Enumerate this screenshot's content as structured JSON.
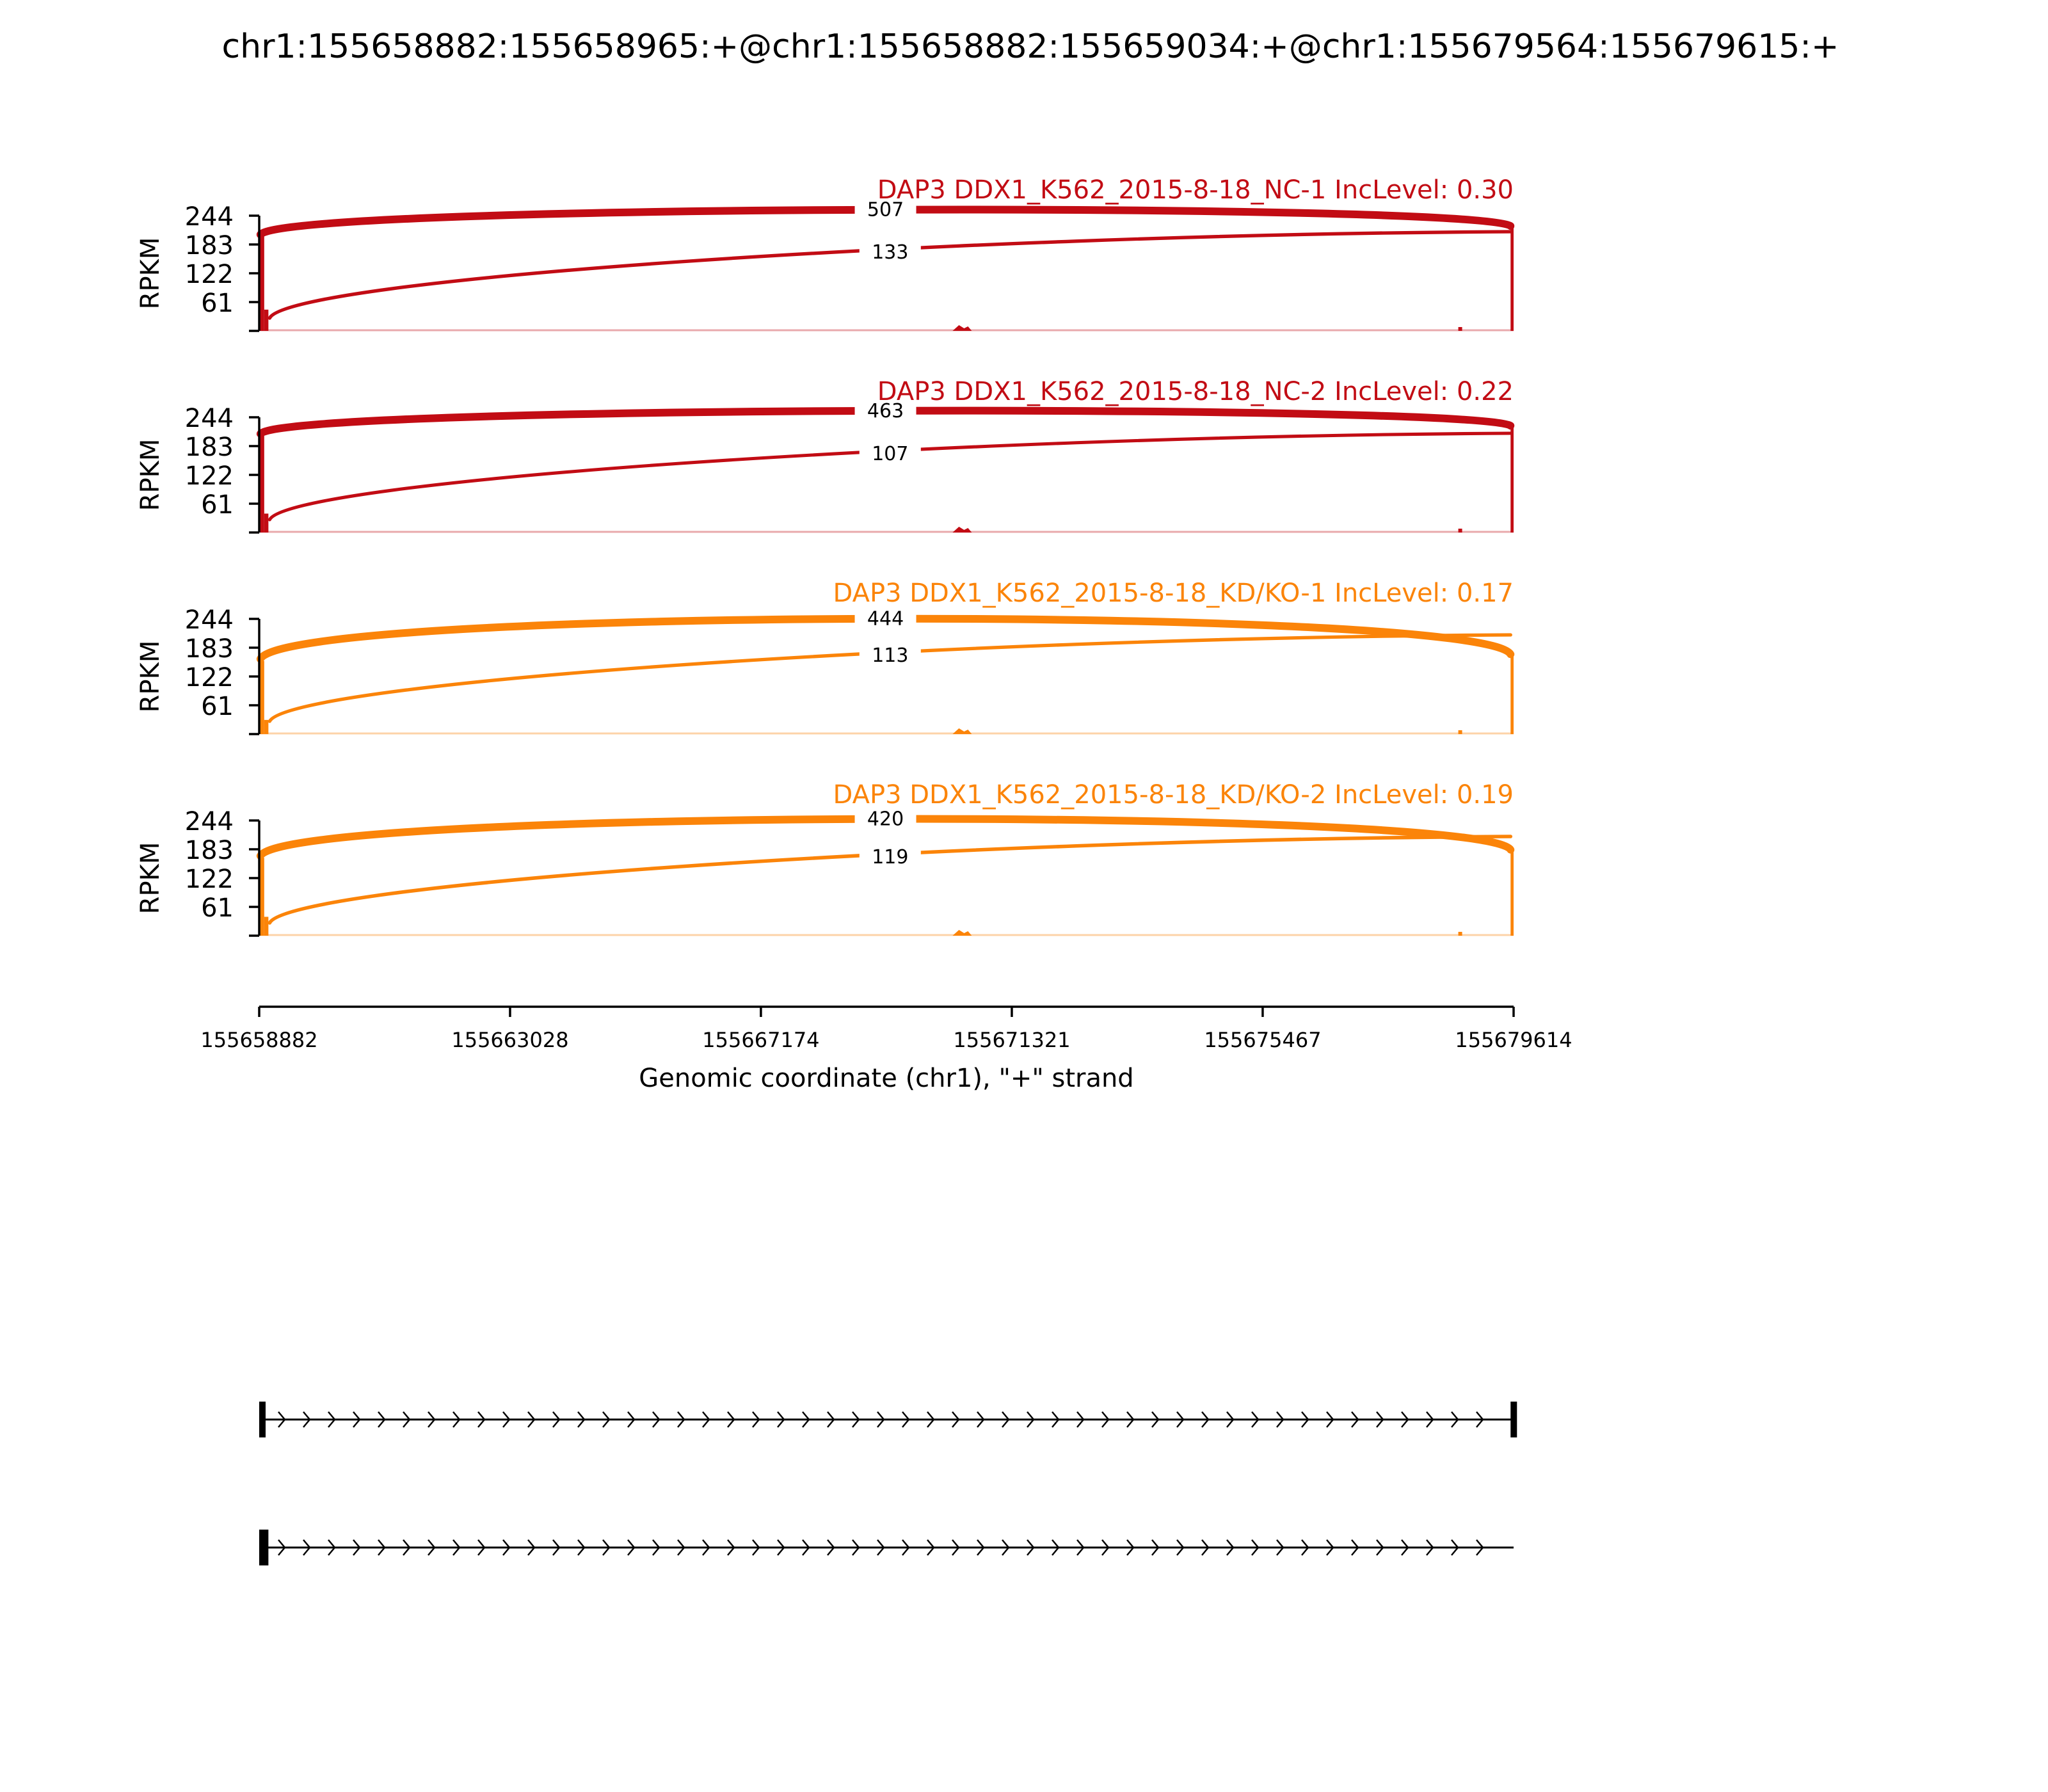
{
  "figure": {
    "title": "chr1:155658882:155658965:+@chr1:155658882:155659034:+@chr1:155679564:155679615:+"
  },
  "chart_data": {
    "type": "sashimi",
    "title": "chr1:155658882:155658965:+@chr1:155658882:155659034:+@chr1:155679564:155679615:+",
    "ylabel": "RPKM",
    "xlabel": "Genomic coordinate (chr1), \"+\" strand",
    "xlim": [
      155658882,
      155679614
    ],
    "ylim": [
      0,
      244
    ],
    "x_ticks": [
      155658882,
      155663028,
      155667174,
      155671321,
      155675467,
      155679614
    ],
    "y_ticks": [
      61,
      122,
      183,
      244
    ],
    "grid": false,
    "panels": [
      {
        "label": "DAP3 DDX1_K562_2015-8-18_NC-1 IncLevel: 0.30",
        "color": "#c20c14",
        "junctions": [
          {
            "start": 155658965,
            "end": 155679564,
            "count": 507,
            "shape": "above"
          },
          {
            "start": 155659034,
            "end": 155679564,
            "count": 133,
            "shape": "below"
          }
        ],
        "coverage": [
          {
            "start": 155658882,
            "end": 155658965,
            "value": 200
          },
          {
            "start": 155658965,
            "end": 155659034,
            "value": 45
          },
          {
            "start": 155679564,
            "end": 155679614,
            "value": 218
          }
        ]
      },
      {
        "label": "DAP3 DDX1_K562_2015-8-18_NC-2 IncLevel: 0.22",
        "color": "#c20c14",
        "junctions": [
          {
            "start": 155658965,
            "end": 155679564,
            "count": 463,
            "shape": "above"
          },
          {
            "start": 155659034,
            "end": 155679564,
            "count": 107,
            "shape": "below"
          }
        ],
        "coverage": [
          {
            "start": 155658882,
            "end": 155658965,
            "value": 205
          },
          {
            "start": 155658965,
            "end": 155659034,
            "value": 40
          },
          {
            "start": 155679564,
            "end": 155679614,
            "value": 222
          }
        ]
      },
      {
        "label": "DAP3 DDX1_K562_2015-8-18_KD/KO-1 IncLevel: 0.17",
        "color": "#fb8409",
        "junctions": [
          {
            "start": 155658965,
            "end": 155679564,
            "count": 444,
            "shape": "above"
          },
          {
            "start": 155659034,
            "end": 155679564,
            "count": 113,
            "shape": "below"
          }
        ],
        "coverage": [
          {
            "start": 155658882,
            "end": 155658965,
            "value": 155
          },
          {
            "start": 155658965,
            "end": 155659034,
            "value": 30
          },
          {
            "start": 155679564,
            "end": 155679614,
            "value": 165
          }
        ]
      },
      {
        "label": "DAP3 DDX1_K562_2015-8-18_KD/KO-2 IncLevel: 0.19",
        "color": "#fb8409",
        "junctions": [
          {
            "start": 155658965,
            "end": 155679564,
            "count": 420,
            "shape": "above"
          },
          {
            "start": 155659034,
            "end": 155679564,
            "count": 119,
            "shape": "below"
          }
        ],
        "coverage": [
          {
            "start": 155658882,
            "end": 155658965,
            "value": 165
          },
          {
            "start": 155658965,
            "end": 155659034,
            "value": 40
          },
          {
            "start": 155679564,
            "end": 155679614,
            "value": 178
          }
        ]
      }
    ],
    "isoforms": [
      {
        "exons": [
          [
            155658882,
            155658965
          ],
          [
            155679564,
            155679615
          ]
        ]
      },
      {
        "exons": [
          [
            155658882,
            155659034
          ]
        ]
      }
    ]
  }
}
